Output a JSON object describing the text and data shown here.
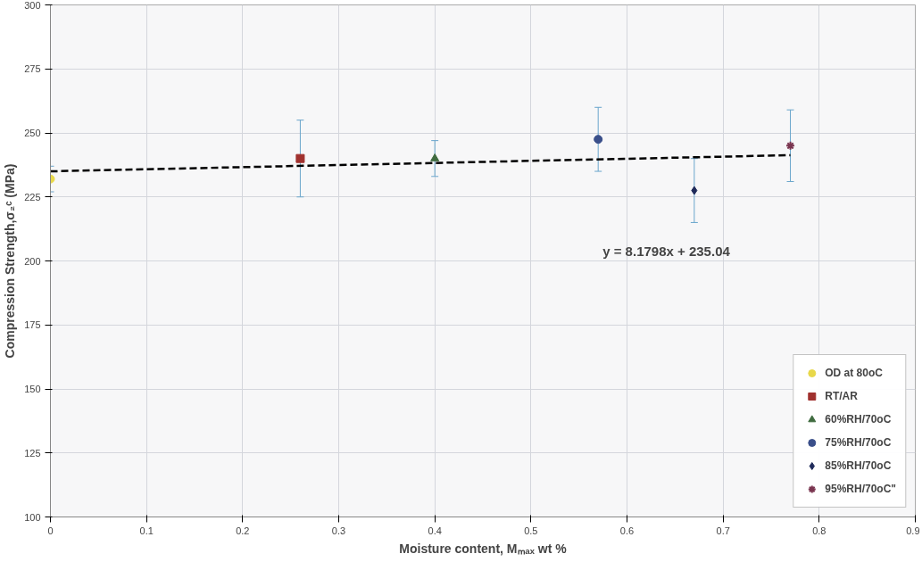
{
  "chart_data": {
    "type": "scatter",
    "xlabel": "Moisture content, Mₘₐₓ wt %",
    "ylabel": "Compression Strength,σ₂ᶜ (MPa)",
    "xlim": [
      0,
      0.9
    ],
    "xticks": [
      0,
      0.1,
      0.2,
      0.3,
      0.4,
      0.5,
      0.6,
      0.7,
      0.8,
      0.9
    ],
    "ylim": [
      100,
      300
    ],
    "yticks": [
      100,
      125,
      150,
      175,
      200,
      225,
      250,
      275,
      300
    ],
    "grid": true,
    "legend": "bottom right",
    "series": [
      {
        "name": "OD at 80oC",
        "color": "#e8d84a",
        "marker": "circle",
        "x": [
          0
        ],
        "values": [
          232
        ],
        "errors": [
          5
        ]
      },
      {
        "name": "RT/AR",
        "color": "#a0312e",
        "marker": "square",
        "x": [
          0.26
        ],
        "values": [
          240
        ],
        "errors": [
          15
        ]
      },
      {
        "name": "60%RH/70oC",
        "color": "#3f6b3f",
        "marker": "triangle",
        "x": [
          0.4
        ],
        "values": [
          240
        ],
        "errors": [
          7
        ]
      },
      {
        "name": "75%RH/70oC",
        "color": "#3a4f8a",
        "marker": "circle",
        "x": [
          0.57
        ],
        "values": [
          247.5
        ],
        "errors": [
          12.5
        ]
      },
      {
        "name": "85%RH/70oC",
        "color": "#1f2a5a",
        "marker": "diamond",
        "x": [
          0.67
        ],
        "values": [
          227.5
        ],
        "errors": [
          12.5
        ]
      },
      {
        "name": "95%RH/70oC\"",
        "color": "#7a3550",
        "marker": "cross",
        "x": [
          0.77
        ],
        "values": [
          245
        ],
        "errors": [
          14
        ]
      },
      {
        "type": "line",
        "color": "#000000",
        "line_style": "dashed",
        "x": [
          0,
          0.77
        ],
        "values": [
          235,
          241.3
        ]
      }
    ],
    "annotations": [
      "y = 8.1798x + 235.04"
    ]
  }
}
